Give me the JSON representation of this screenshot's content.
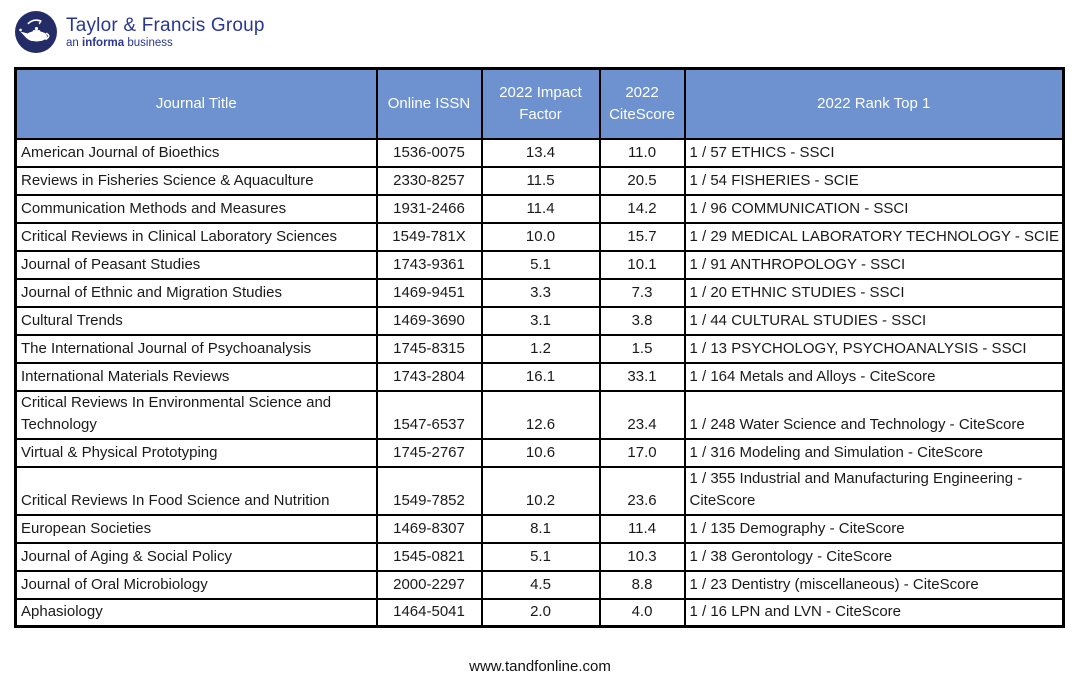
{
  "logo": {
    "title": "Taylor & Francis Group",
    "subtitle_prefix": "an ",
    "subtitle_bold": "informa",
    "subtitle_suffix": " business",
    "circle_color": "#232C66",
    "text_color": "#2A3790"
  },
  "table": {
    "header_bg": "#6D92CF",
    "columns": [
      "Journal Title",
      "Online ISSN",
      "2022 Impact Factor",
      "2022 CiteScore",
      "2022 Rank Top 1"
    ],
    "rows": [
      {
        "title": "American Journal of Bioethics",
        "issn": "1536-0075",
        "impact_factor": "13.4",
        "citescore": "11.0",
        "rank": "1 / 57 ETHICS - SSCI",
        "tall": false
      },
      {
        "title": "Reviews in Fisheries Science & Aquaculture",
        "issn": "2330-8257",
        "impact_factor": "11.5",
        "citescore": "20.5",
        "rank": "1 / 54 FISHERIES - SCIE",
        "tall": false
      },
      {
        "title": "Communication Methods and Measures",
        "issn": "1931-2466",
        "impact_factor": "11.4",
        "citescore": "14.2",
        "rank": "1 / 96 COMMUNICATION - SSCI",
        "tall": false
      },
      {
        "title": "Critical Reviews in Clinical Laboratory Sciences",
        "issn": "1549-781X",
        "impact_factor": "10.0",
        "citescore": "15.7",
        "rank": "1 / 29 MEDICAL LABORATORY TECHNOLOGY - SCIE",
        "tall": false
      },
      {
        "title": "Journal of Peasant Studies",
        "issn": "1743-9361",
        "impact_factor": "5.1",
        "citescore": "10.1",
        "rank": "1 / 91 ANTHROPOLOGY - SSCI",
        "tall": false
      },
      {
        "title": "Journal of Ethnic and Migration Studies",
        "issn": "1469-9451",
        "impact_factor": "3.3",
        "citescore": "7.3",
        "rank": "1 / 20 ETHNIC STUDIES - SSCI",
        "tall": false
      },
      {
        "title": "Cultural Trends",
        "issn": "1469-3690",
        "impact_factor": "3.1",
        "citescore": "3.8",
        "rank": "1 / 44 CULTURAL STUDIES - SSCI",
        "tall": false
      },
      {
        "title": "The International Journal of Psychoanalysis",
        "issn": "1745-8315",
        "impact_factor": "1.2",
        "citescore": "1.5",
        "rank": "1 / 13 PSYCHOLOGY, PSYCHOANALYSIS - SSCI",
        "tall": false
      },
      {
        "title": "International Materials Reviews",
        "issn": "1743-2804",
        "impact_factor": "16.1",
        "citescore": "33.1",
        "rank": "1 / 164 Metals and Alloys - CiteScore",
        "tall": false
      },
      {
        "title": "Critical Reviews In Environmental Science and Technology",
        "issn": "1547-6537",
        "impact_factor": "12.6",
        "citescore": "23.4",
        "rank": "1 / 248 Water Science and Technology - CiteScore",
        "tall": true
      },
      {
        "title": "Virtual & Physical Prototyping",
        "issn": "1745-2767",
        "impact_factor": "10.6",
        "citescore": "17.0",
        "rank": "1 / 316 Modeling and Simulation - CiteScore",
        "tall": false
      },
      {
        "title": "Critical Reviews In Food Science and Nutrition",
        "issn": "1549-7852",
        "impact_factor": "10.2",
        "citescore": "23.6",
        "rank": "1 / 355 Industrial and Manufacturing Engineering - CiteScore",
        "tall": true
      },
      {
        "title": "European Societies",
        "issn": "1469-8307",
        "impact_factor": "8.1",
        "citescore": "11.4",
        "rank": "1 / 135 Demography - CiteScore",
        "tall": false
      },
      {
        "title": "Journal of Aging & Social Policy",
        "issn": "1545-0821",
        "impact_factor": "5.1",
        "citescore": "10.3",
        "rank": "1 / 38 Gerontology - CiteScore",
        "tall": false
      },
      {
        "title": "Journal of Oral Microbiology",
        "issn": "2000-2297",
        "impact_factor": "4.5",
        "citescore": "8.8",
        "rank": "1 / 23 Dentistry (miscellaneous) - CiteScore",
        "tall": false
      },
      {
        "title": "Aphasiology",
        "issn": "1464-5041",
        "impact_factor": "2.0",
        "citescore": "4.0",
        "rank": "1 / 16 LPN and LVN - CiteScore",
        "tall": false
      }
    ]
  },
  "footer": {
    "url": "www.tandfonline.com"
  }
}
